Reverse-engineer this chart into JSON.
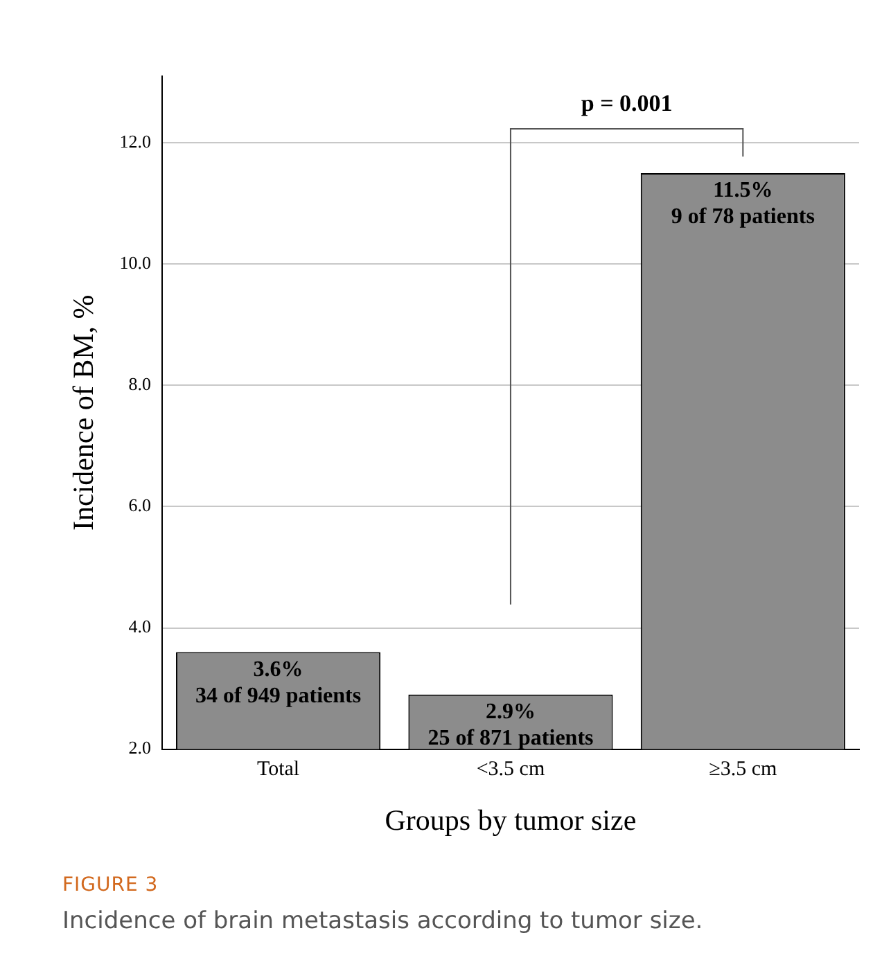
{
  "chart_data": {
    "type": "bar",
    "xlabel": "Groups by tumor size",
    "ylabel": "Incidence of BM, %",
    "categories": [
      "Total",
      "<3.5 cm",
      "≥3.5 cm"
    ],
    "values": [
      3.6,
      2.9,
      11.5
    ],
    "color": "#8c8c8c",
    "value_labels": [
      "3.6%\n34 of 949 patients",
      "2.9%\n25 of 871 patients",
      "11.5%\n9 of 78 patients"
    ],
    "ylim": [
      2,
      13.1
    ],
    "yticks": [
      {
        "value": 2,
        "label": "2.0"
      },
      {
        "value": 4,
        "label": "4.0"
      },
      {
        "value": 6,
        "label": "6.0"
      },
      {
        "value": 8,
        "label": "8.0"
      },
      {
        "value": 10,
        "label": "10.0"
      },
      {
        "value": 12,
        "label": "12.0"
      }
    ],
    "grid": "y",
    "legend": false,
    "annotations": [
      "p = 0.001",
      "FIGURE 3",
      "Incidence of brain metastasis according to tumor size."
    ]
  }
}
